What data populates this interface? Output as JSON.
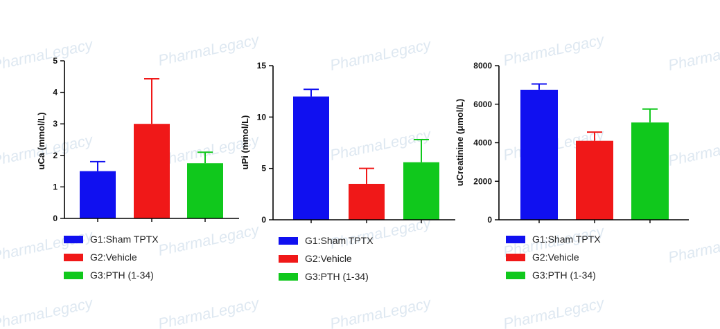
{
  "watermark": {
    "text": "PharmaLegacy"
  },
  "colors": {
    "G1": "#1010f0",
    "G2": "#f01818",
    "G3": "#10c81c",
    "axis": "#000000",
    "watermark": "#a9c3dd"
  },
  "chart_data": [
    {
      "type": "bar",
      "ylabel": "uCa (mmol/L)",
      "ylim": [
        0,
        5
      ],
      "yticks": [
        "0",
        "1",
        "2",
        "3",
        "4",
        "5"
      ],
      "categories": [
        "G1:Sham TPTX",
        "G2:Vehicle",
        "G3:PTH (1-34)"
      ],
      "values": [
        1.5,
        3.0,
        1.75
      ],
      "errors": [
        0.3,
        1.43,
        0.35
      ],
      "legend": [
        "G1:Sham TPTX",
        "G2:Vehicle",
        "G3:PTH (1-34)"
      ],
      "legend_position": "bottom"
    },
    {
      "type": "bar",
      "ylabel": "uPi (mmol/L)",
      "ylim": [
        0,
        15
      ],
      "yticks": [
        "0",
        "5",
        "10",
        "15"
      ],
      "categories": [
        "G1:Sham TPTX",
        "G2:Vehicle",
        "G3:PTH (1-34)"
      ],
      "values": [
        12.0,
        3.5,
        5.6
      ],
      "errors": [
        0.7,
        1.5,
        2.2
      ],
      "legend": [
        "G1:Sham TPTX",
        "G2:Vehicle",
        "G3:PTH (1-34)"
      ],
      "legend_position": "bottom"
    },
    {
      "type": "bar",
      "ylabel": "uCreatinine (μmol/L)",
      "ylim": [
        0,
        8000
      ],
      "yticks": [
        "0",
        "2000",
        "4000",
        "6000",
        "8000"
      ],
      "categories": [
        "G1:Sham TPTX",
        "G2:Vehicle",
        "G3:PTH (1-34)"
      ],
      "values": [
        6750,
        4100,
        5050
      ],
      "errors": [
        300,
        450,
        700
      ],
      "legend": [
        "G1:Sham TPTX",
        "G2:Vehicle",
        "G3:PTH (1-34)"
      ],
      "legend_position": "bottom"
    }
  ]
}
